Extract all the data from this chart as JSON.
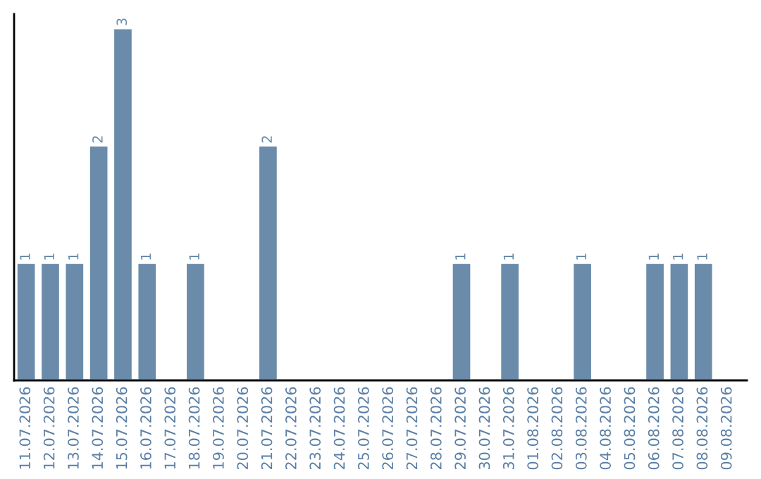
{
  "chart_data": {
    "type": "bar",
    "categories": [
      "11.07.2026",
      "12.07.2026",
      "13.07.2026",
      "14.07.2026",
      "15.07.2026",
      "16.07.2026",
      "17.07.2026",
      "18.07.2026",
      "19.07.2026",
      "20.07.2026",
      "21.07.2026",
      "22.07.2026",
      "23.07.2026",
      "24.07.2026",
      "25.07.2026",
      "26.07.2026",
      "27.07.2026",
      "28.07.2026",
      "29.07.2026",
      "30.07.2026",
      "31.07.2026",
      "01.08.2026",
      "02.08.2026",
      "03.08.2026",
      "04.08.2026",
      "05.08.2026",
      "06.08.2026",
      "07.08.2026",
      "08.08.2026",
      "09.08.2026"
    ],
    "values": [
      1,
      1,
      1,
      2,
      3,
      1,
      0,
      1,
      0,
      0,
      2,
      0,
      0,
      0,
      0,
      0,
      0,
      0,
      1,
      0,
      1,
      0,
      0,
      1,
      0,
      0,
      1,
      1,
      1,
      0
    ],
    "value_labels": [
      "1",
      "1",
      "1",
      "2",
      "3",
      "1",
      null,
      "1",
      null,
      null,
      "2",
      null,
      null,
      null,
      null,
      null,
      null,
      null,
      "1",
      null,
      "1",
      null,
      null,
      "1",
      null,
      null,
      "1",
      "1",
      "1",
      null
    ],
    "color": "#6a8caa",
    "tick_labels": "x",
    "grid": false,
    "legend": false
  }
}
